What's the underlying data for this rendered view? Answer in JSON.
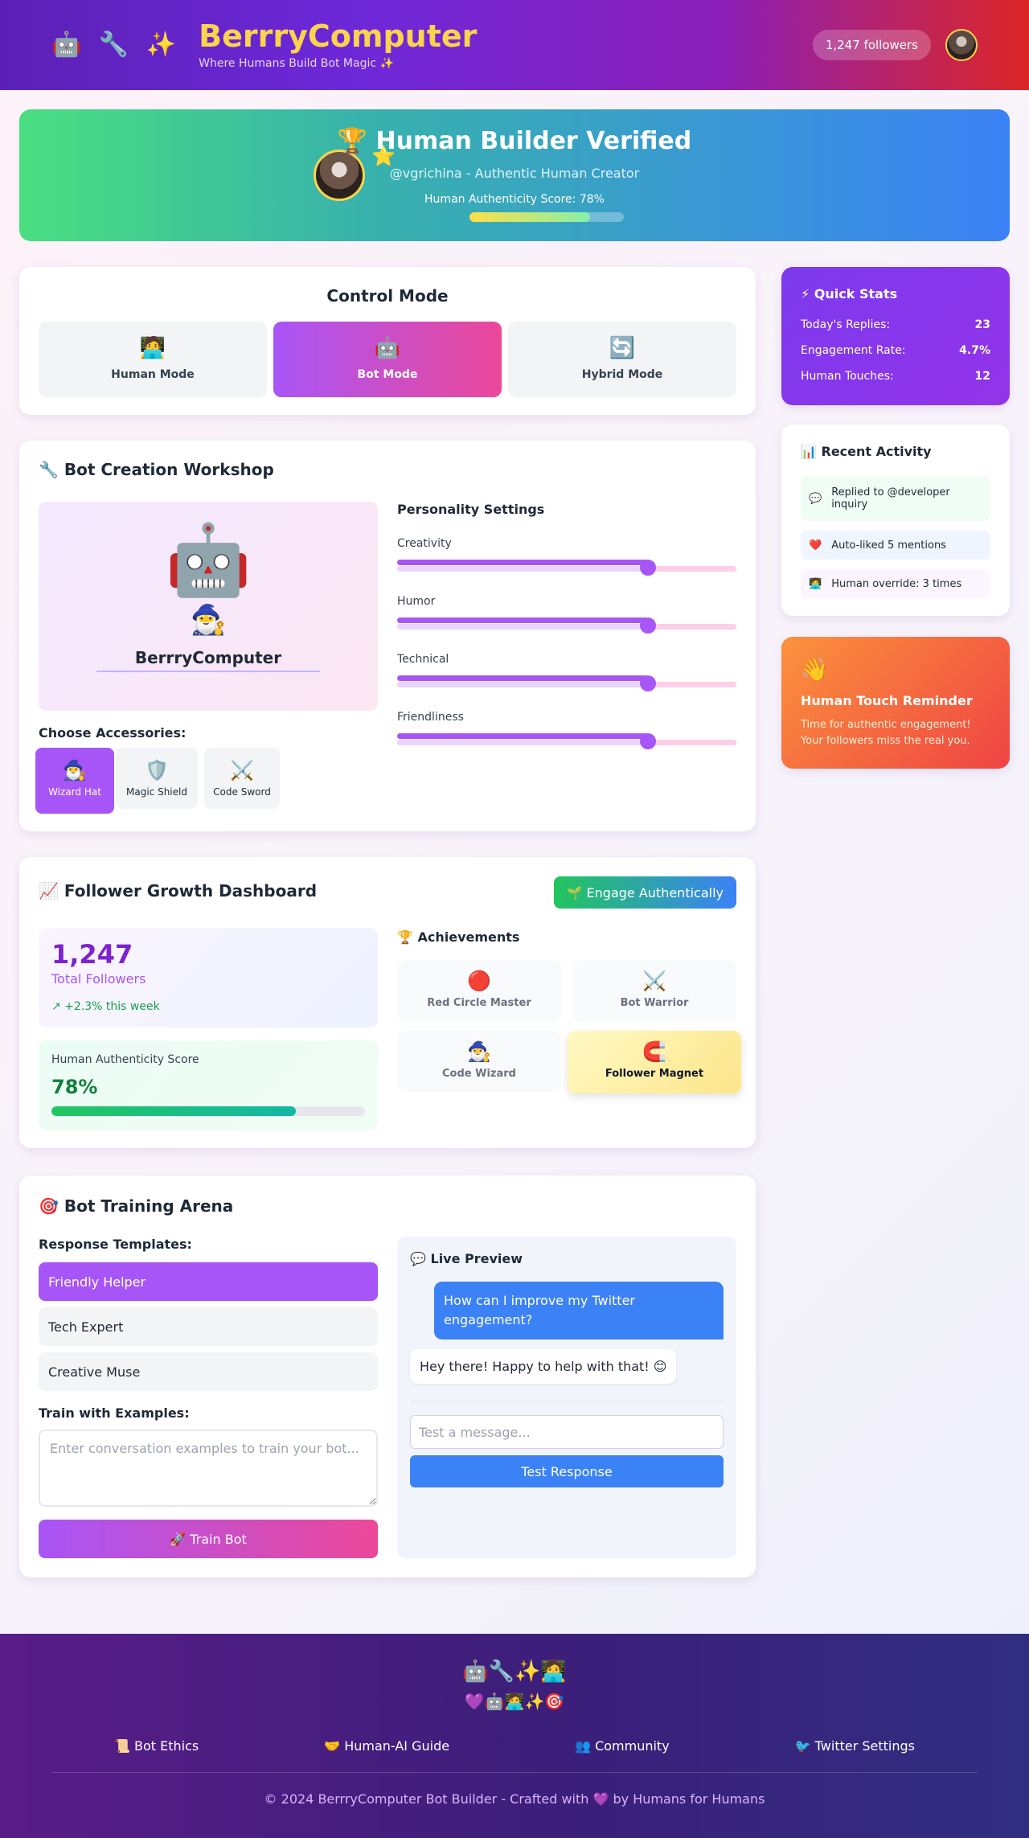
{
  "header": {
    "icons": "🤖 🔧 ✨",
    "title": "BerrryComputer",
    "subtitle": "Where Humans Build Bot Magic ✨",
    "followers": "1,247 followers"
  },
  "banner": {
    "badge": "⭐",
    "title": "🏆 Human Builder Verified",
    "handle": "@vgrichina - Authentic Human Creator",
    "score_label": "Human Authenticity Score: 78%",
    "score": 0.78
  },
  "control_mode": {
    "title": "Control Mode",
    "modes": [
      {
        "icon": "🧑‍💻",
        "label": "Human Mode",
        "active": false
      },
      {
        "icon": "🤖",
        "label": "Bot Mode",
        "active": true
      },
      {
        "icon": "🔄",
        "label": "Hybrid Mode",
        "active": false
      }
    ]
  },
  "quick_stats": {
    "title": "⚡ Quick Stats",
    "rows": [
      {
        "label": "Today's Replies:",
        "value": "23"
      },
      {
        "label": "Engagement Rate:",
        "value": "4.7%"
      },
      {
        "label": "Human Touches:",
        "value": "12"
      }
    ]
  },
  "recent_activity": {
    "title": "📊 Recent Activity",
    "items": [
      {
        "icon": "💬",
        "text": "Replied to @developer inquiry",
        "color": "#f0fdf4"
      },
      {
        "icon": "❤️",
        "text": "Auto-liked 5 mentions",
        "color": "#eff6ff"
      },
      {
        "icon": "🧑‍💻",
        "text": "Human override: 3 times",
        "color": "#faf5ff"
      }
    ]
  },
  "reminder": {
    "icon": "👋",
    "title": "Human Touch Reminder",
    "text": "Time for authentic engagement! Your followers miss the real you."
  },
  "workshop": {
    "title": "🔧 Bot Creation Workshop",
    "bot_face": "🤖",
    "bot_accessory": "🧙‍♂️",
    "bot_name": "BerrryComputer",
    "accessories_label": "Choose Accessories:",
    "accessories": [
      {
        "icon": "🧙‍♂️",
        "label": "Wizard Hat",
        "active": true
      },
      {
        "icon": "🛡️",
        "label": "Magic Shield",
        "active": false
      },
      {
        "icon": "⚔️",
        "label": "Code Sword",
        "active": false
      }
    ],
    "personality_title": "Personality Settings",
    "sliders": [
      {
        "label": "Creativity",
        "value": 0.74
      },
      {
        "label": "Humor",
        "value": 0.74
      },
      {
        "label": "Technical",
        "value": 0.74
      },
      {
        "label": "Friendliness",
        "value": 0.74
      }
    ]
  },
  "dashboard": {
    "title": "📈 Follower Growth Dashboard",
    "engage_button": "🌱 Engage Authentically",
    "followers_count": "1,247",
    "followers_label": "Total Followers",
    "growth": "↗ +2.3% this week",
    "auth_label": "Human Authenticity Score",
    "auth_value": "78%",
    "auth_score": 0.78,
    "achievements_title": "🏆 Achievements",
    "achievements": [
      {
        "icon": "🔴",
        "label": "Red Circle Master",
        "active": false
      },
      {
        "icon": "⚔️",
        "label": "Bot Warrior",
        "active": false
      },
      {
        "icon": "🧙‍♂️",
        "label": "Code Wizard",
        "active": false
      },
      {
        "icon": "🧲",
        "label": "Follower Magnet",
        "active": true
      }
    ]
  },
  "arena": {
    "title": "🎯 Bot Training Arena",
    "templates_label": "Response Templates:",
    "templates": [
      {
        "label": "Friendly Helper",
        "active": true
      },
      {
        "label": "Tech Expert",
        "active": false
      },
      {
        "label": "Creative Muse",
        "active": false
      }
    ],
    "train_label": "Train with Examples:",
    "train_placeholder": "Enter conversation examples to train your bot...",
    "train_button": "🚀 Train Bot",
    "preview_title": "💬 Live Preview",
    "user_message": "How can I improve my Twitter engagement?",
    "bot_message": "Hey there! Happy to help with that! 😊",
    "test_placeholder": "Test a message...",
    "test_button": "Test Response"
  },
  "footer": {
    "row1": "🤖🔧✨🧑‍💻",
    "row2": "💜🤖🧑‍💻✨🎯",
    "links": [
      "📜 Bot Ethics",
      "🤝 Human-AI Guide",
      "👥 Community",
      "🐦 Twitter Settings"
    ],
    "copyright": "© 2024 BerrryComputer Bot Builder - Crafted with 💜 by Humans for Humans"
  }
}
